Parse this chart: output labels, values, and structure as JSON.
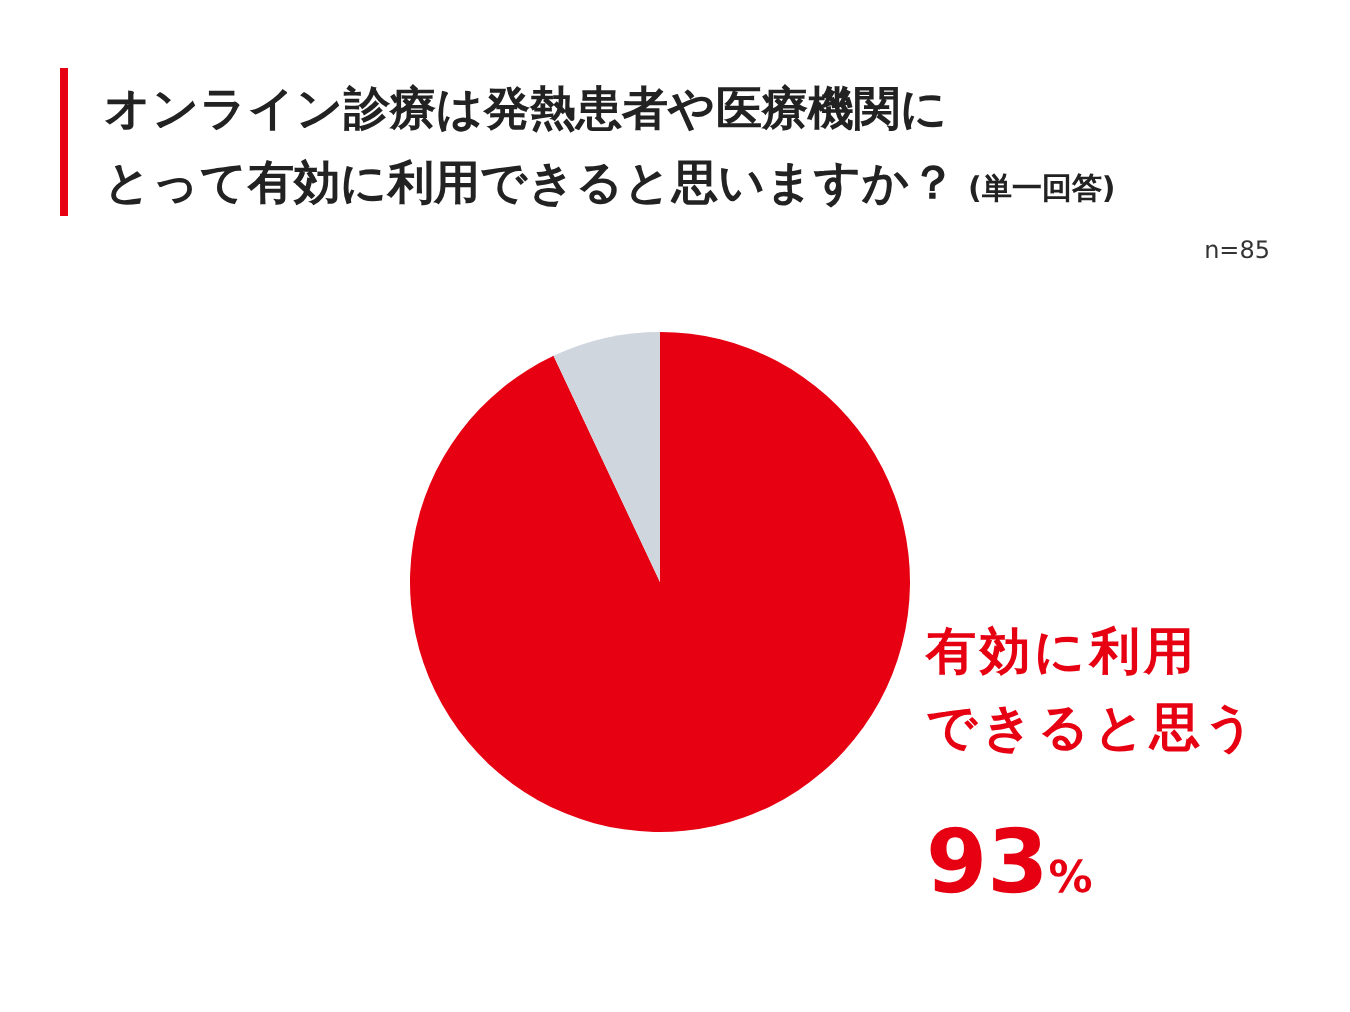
{
  "chart_data": {
    "type": "pie",
    "title": "オンライン診療は発熱患者や医療機関にとって有効に利用できると思いますか？",
    "subtitle": "(単一回答)",
    "annotations": [
      "n=85"
    ],
    "categories": [
      "有効に利用できると思う",
      null
    ],
    "values": [
      93,
      7
    ],
    "colors": [
      "#e60012",
      "#d0d6de"
    ],
    "value_labels": [
      "93%",
      null
    ]
  }
}
